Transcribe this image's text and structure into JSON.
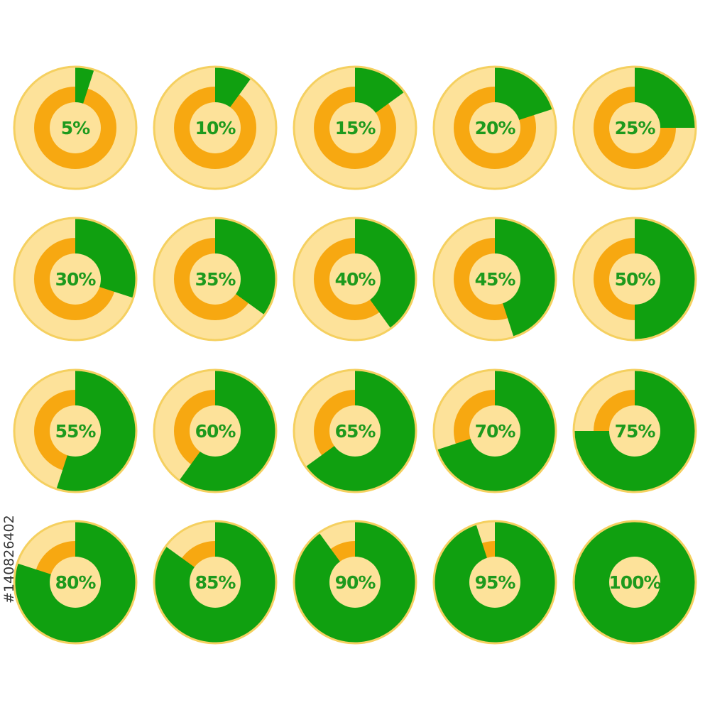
{
  "colors": {
    "outer_disc": "#fde29a",
    "outer_border": "#f5d060",
    "track_ring": "#f7a811",
    "progress": "#10a010",
    "label_text": "#1d9a1d",
    "inner_disc": "#fde29a"
  },
  "watermark_id": "#140826402",
  "indicators": [
    {
      "value": 5,
      "label": "5%"
    },
    {
      "value": 10,
      "label": "10%"
    },
    {
      "value": 15,
      "label": "15%"
    },
    {
      "value": 20,
      "label": "20%"
    },
    {
      "value": 25,
      "label": "25%"
    },
    {
      "value": 30,
      "label": "30%"
    },
    {
      "value": 35,
      "label": "35%"
    },
    {
      "value": 40,
      "label": "40%"
    },
    {
      "value": 45,
      "label": "45%"
    },
    {
      "value": 50,
      "label": "50%"
    },
    {
      "value": 55,
      "label": "55%"
    },
    {
      "value": 60,
      "label": "60%"
    },
    {
      "value": 65,
      "label": "65%"
    },
    {
      "value": 70,
      "label": "70%"
    },
    {
      "value": 75,
      "label": "75%"
    },
    {
      "value": 80,
      "label": "80%"
    },
    {
      "value": 85,
      "label": "85%"
    },
    {
      "value": 90,
      "label": "90%"
    },
    {
      "value": 95,
      "label": "95%"
    },
    {
      "value": 100,
      "label": "100%"
    }
  ]
}
